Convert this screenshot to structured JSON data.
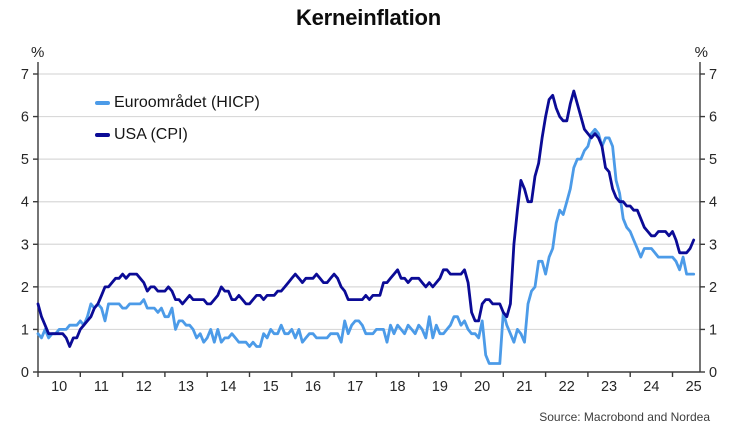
{
  "title": "Kerneinflation",
  "units": {
    "left": "%",
    "right": "%"
  },
  "source": "Source: Macrobond and Nordea",
  "legend": [
    {
      "label": "Euroområdet (HICP)",
      "color": "#4c9be8"
    },
    {
      "label": "USA (CPI)",
      "color": "#0b0b96"
    }
  ],
  "colors": {
    "grid": "#d9d9d9",
    "axis": "#3a3a3a",
    "tick_label": "#262626",
    "euro_line": "#4c9be8",
    "usa_line": "#0b0b96"
  },
  "chart_data": {
    "type": "line",
    "title": "Kerneinflation",
    "xlabel": "",
    "ylabel": "%",
    "grid": "horizontal",
    "legend_position": "top-left-inside",
    "ylim": [
      0,
      7
    ],
    "y_ticks": [
      0,
      1,
      2,
      3,
      4,
      5,
      6,
      7
    ],
    "x_domain": [
      2010.0,
      2025.65
    ],
    "x_tick_years": [
      2010,
      2011,
      2012,
      2013,
      2014,
      2015,
      2016,
      2017,
      2018,
      2019,
      2020,
      2021,
      2022,
      2023,
      2024,
      2025
    ],
    "x_tick_labels": [
      "10",
      "11",
      "12",
      "13",
      "14",
      "15",
      "16",
      "17",
      "18",
      "19",
      "20",
      "21",
      "22",
      "23",
      "24",
      "25"
    ],
    "x_start": 2010.0,
    "x_step_years": 0.0833333,
    "frequency": "monthly",
    "series": [
      {
        "name": "Euroområdet (HICP)",
        "color": "#4c9be8",
        "values": [
          0.9,
          0.8,
          1.0,
          0.8,
          0.9,
          0.9,
          1.0,
          1.0,
          1.0,
          1.1,
          1.1,
          1.1,
          1.2,
          1.1,
          1.3,
          1.6,
          1.5,
          1.6,
          1.5,
          1.2,
          1.6,
          1.6,
          1.6,
          1.6,
          1.5,
          1.5,
          1.6,
          1.6,
          1.6,
          1.6,
          1.7,
          1.5,
          1.5,
          1.5,
          1.4,
          1.5,
          1.3,
          1.3,
          1.5,
          1.0,
          1.2,
          1.2,
          1.1,
          1.1,
          1.0,
          0.8,
          0.9,
          0.7,
          0.8,
          1.0,
          0.7,
          1.0,
          0.7,
          0.8,
          0.8,
          0.9,
          0.8,
          0.7,
          0.7,
          0.7,
          0.6,
          0.7,
          0.6,
          0.6,
          0.9,
          0.8,
          1.0,
          0.9,
          0.9,
          1.1,
          0.9,
          0.9,
          1.0,
          0.8,
          1.0,
          0.7,
          0.8,
          0.9,
          0.9,
          0.8,
          0.8,
          0.8,
          0.8,
          0.9,
          0.9,
          0.9,
          0.7,
          1.2,
          0.9,
          1.1,
          1.2,
          1.2,
          1.1,
          0.9,
          0.9,
          0.9,
          1.0,
          1.0,
          1.0,
          0.7,
          1.1,
          0.9,
          1.1,
          1.0,
          0.9,
          1.1,
          1.0,
          0.9,
          1.1,
          1.0,
          0.8,
          1.3,
          0.8,
          1.1,
          0.9,
          0.9,
          1.0,
          1.1,
          1.3,
          1.3,
          1.1,
          1.2,
          1.0,
          0.9,
          0.9,
          0.8,
          1.2,
          0.4,
          0.2,
          0.2,
          0.2,
          0.2,
          1.4,
          1.1,
          0.9,
          0.7,
          1.0,
          0.9,
          0.7,
          1.6,
          1.9,
          2.0,
          2.6,
          2.6,
          2.3,
          2.7,
          2.9,
          3.5,
          3.8,
          3.7,
          4.0,
          4.3,
          4.8,
          5.0,
          5.0,
          5.2,
          5.3,
          5.6,
          5.7,
          5.6,
          5.3,
          5.5,
          5.5,
          5.3,
          4.5,
          4.2,
          3.6,
          3.4,
          3.3,
          3.1,
          2.9,
          2.7,
          2.9,
          2.9,
          2.9,
          2.8,
          2.7,
          2.7,
          2.7,
          2.7,
          2.7,
          2.6,
          2.4,
          2.7,
          2.3,
          2.3,
          2.3
        ]
      },
      {
        "name": "USA (CPI)",
        "color": "#0b0b96",
        "values": [
          1.6,
          1.3,
          1.1,
          0.9,
          0.9,
          0.9,
          0.9,
          0.9,
          0.8,
          0.6,
          0.8,
          0.8,
          1.0,
          1.1,
          1.2,
          1.3,
          1.5,
          1.6,
          1.8,
          2.0,
          2.0,
          2.1,
          2.2,
          2.2,
          2.3,
          2.2,
          2.3,
          2.3,
          2.3,
          2.2,
          2.1,
          1.9,
          2.0,
          2.0,
          1.9,
          1.9,
          1.9,
          2.0,
          1.9,
          1.7,
          1.7,
          1.6,
          1.7,
          1.8,
          1.7,
          1.7,
          1.7,
          1.7,
          1.6,
          1.6,
          1.7,
          1.8,
          2.0,
          1.9,
          1.9,
          1.7,
          1.7,
          1.8,
          1.7,
          1.6,
          1.6,
          1.7,
          1.8,
          1.8,
          1.7,
          1.8,
          1.8,
          1.8,
          1.9,
          1.9,
          2.0,
          2.1,
          2.2,
          2.3,
          2.2,
          2.1,
          2.2,
          2.2,
          2.2,
          2.3,
          2.2,
          2.1,
          2.1,
          2.2,
          2.3,
          2.2,
          2.0,
          1.9,
          1.7,
          1.7,
          1.7,
          1.7,
          1.7,
          1.8,
          1.7,
          1.8,
          1.8,
          1.8,
          2.1,
          2.1,
          2.2,
          2.3,
          2.4,
          2.2,
          2.2,
          2.1,
          2.2,
          2.2,
          2.2,
          2.1,
          2.0,
          2.1,
          2.0,
          2.1,
          2.2,
          2.4,
          2.4,
          2.3,
          2.3,
          2.3,
          2.3,
          2.4,
          2.1,
          1.4,
          1.2,
          1.2,
          1.6,
          1.7,
          1.7,
          1.6,
          1.6,
          1.6,
          1.4,
          1.3,
          1.6,
          3.0,
          3.8,
          4.5,
          4.3,
          4.0,
          4.0,
          4.6,
          4.9,
          5.5,
          6.0,
          6.4,
          6.5,
          6.2,
          6.0,
          5.9,
          5.9,
          6.3,
          6.6,
          6.3,
          6.0,
          5.7,
          5.6,
          5.5,
          5.6,
          5.5,
          5.3,
          4.8,
          4.7,
          4.3,
          4.1,
          4.0,
          4.0,
          3.9,
          3.9,
          3.8,
          3.8,
          3.6,
          3.4,
          3.3,
          3.2,
          3.2,
          3.3,
          3.3,
          3.3,
          3.2,
          3.3,
          3.1,
          2.8,
          2.8,
          2.8,
          2.9,
          3.1
        ]
      }
    ]
  }
}
